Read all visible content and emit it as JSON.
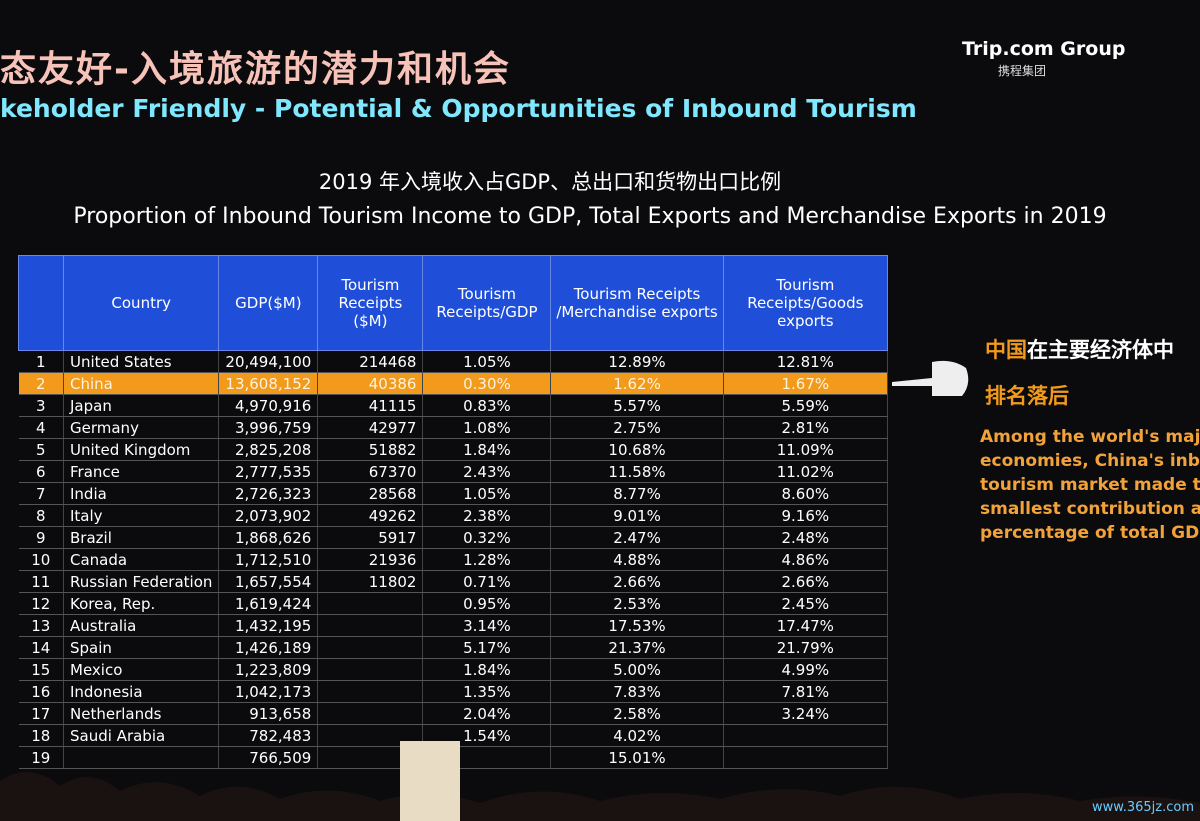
{
  "header": {
    "title": "态友好-入境旅游的潜力和机会",
    "subtitle": "keholder Friendly - Potential & Opportunities of Inbound Tourism",
    "logo": "Trip.com Group",
    "logo_cn": "携程集团"
  },
  "heading": {
    "cn": "2019 年入境收入占GDP、总出口和货物出口比例",
    "en": "Proportion of Inbound Tourism Income to GDP, Total Exports and Merchandise Exports in 2019"
  },
  "table": {
    "columns": [
      "Country",
      "GDP($M)",
      "Tourism Receipts ($M)",
      "Tourism Receipts/GDP",
      "Tourism Receipts /Merchandise exports",
      "Tourism Receipts/Goods exports"
    ],
    "rows": [
      [
        "1",
        "United States",
        "20,494,100",
        "214468",
        "1.05%",
        "12.89%",
        "12.81%"
      ],
      [
        "2",
        "China",
        "13,608,152",
        "40386",
        "0.30%",
        "1.62%",
        "1.67%"
      ],
      [
        "3",
        "Japan",
        "4,970,916",
        "41115",
        "0.83%",
        "5.57%",
        "5.59%"
      ],
      [
        "4",
        "Germany",
        "3,996,759",
        "42977",
        "1.08%",
        "2.75%",
        "2.81%"
      ],
      [
        "5",
        "United Kingdom",
        "2,825,208",
        "51882",
        "1.84%",
        "10.68%",
        "11.09%"
      ],
      [
        "6",
        "France",
        "2,777,535",
        "67370",
        "2.43%",
        "11.58%",
        "11.02%"
      ],
      [
        "7",
        "India",
        "2,726,323",
        "28568",
        "1.05%",
        "8.77%",
        "8.60%"
      ],
      [
        "8",
        "Italy",
        "2,073,902",
        "49262",
        "2.38%",
        "9.01%",
        "9.16%"
      ],
      [
        "9",
        "Brazil",
        "1,868,626",
        "5917",
        "0.32%",
        "2.47%",
        "2.48%"
      ],
      [
        "10",
        "Canada",
        "1,712,510",
        "21936",
        "1.28%",
        "4.88%",
        "4.86%"
      ],
      [
        "11",
        "Russian Federation",
        "1,657,554",
        "11802",
        "0.71%",
        "2.66%",
        "2.66%"
      ],
      [
        "12",
        "Korea, Rep.",
        "1,619,424",
        null,
        "0.95%",
        "2.53%",
        "2.45%"
      ],
      [
        "13",
        "Australia",
        "1,432,195",
        null,
        "3.14%",
        "17.53%",
        "17.47%"
      ],
      [
        "14",
        "Spain",
        "1,426,189",
        null,
        "5.17%",
        "21.37%",
        "21.79%"
      ],
      [
        "15",
        "Mexico",
        "1,223,809",
        null,
        "1.84%",
        "5.00%",
        "4.99%"
      ],
      [
        "16",
        "Indonesia",
        "1,042,173",
        null,
        "1.35%",
        "7.83%",
        "7.81%"
      ],
      [
        "17",
        "Netherlands",
        "913,658",
        null,
        "2.04%",
        "2.58%",
        "3.24%"
      ],
      [
        "18",
        "Saudi Arabia",
        "782,483",
        null,
        "1.54%",
        "4.02%",
        null
      ],
      [
        "19",
        null,
        "766,509",
        null,
        null,
        "15.01%",
        null
      ]
    ]
  },
  "callout": {
    "cn_highlight": "中国",
    "cn_rest": "在主要经济体中",
    "cn_line2": "排名落后",
    "en_lines": [
      "Among the world's majo",
      "economies, China's inbo",
      "tourism market made the",
      "smallest contribution as",
      "percentage of total GDP"
    ]
  },
  "watermark": "www.365jz.com"
}
